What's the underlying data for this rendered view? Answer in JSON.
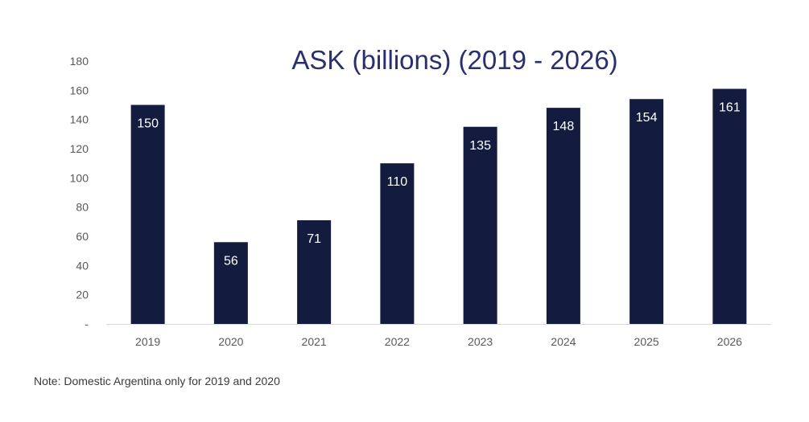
{
  "chart_data": {
    "type": "bar",
    "title": "ASK (billions) (2019 - 2026)",
    "categories": [
      "2019",
      "2020",
      "2021",
      "2022",
      "2023",
      "2024",
      "2025",
      "2026"
    ],
    "values": [
      150,
      56,
      71,
      110,
      135,
      148,
      154,
      161
    ],
    "data_labels": [
      "150",
      "56",
      "71",
      "110",
      "135",
      "148",
      "154",
      "161"
    ],
    "yticks": [
      0,
      20,
      40,
      60,
      80,
      100,
      120,
      140,
      160,
      180
    ],
    "ytick_labels": [
      "-",
      "20",
      "40",
      "60",
      "80",
      "100",
      "120",
      "140",
      "160",
      "180"
    ],
    "ylim": [
      0,
      180
    ],
    "xlabel": "",
    "ylabel": "",
    "grid": false,
    "legend": "none",
    "bar_color": "#131c3e",
    "title_color": "#2b2f6e"
  },
  "note": "Note: Domestic Argentina only for 2019 and 2020"
}
